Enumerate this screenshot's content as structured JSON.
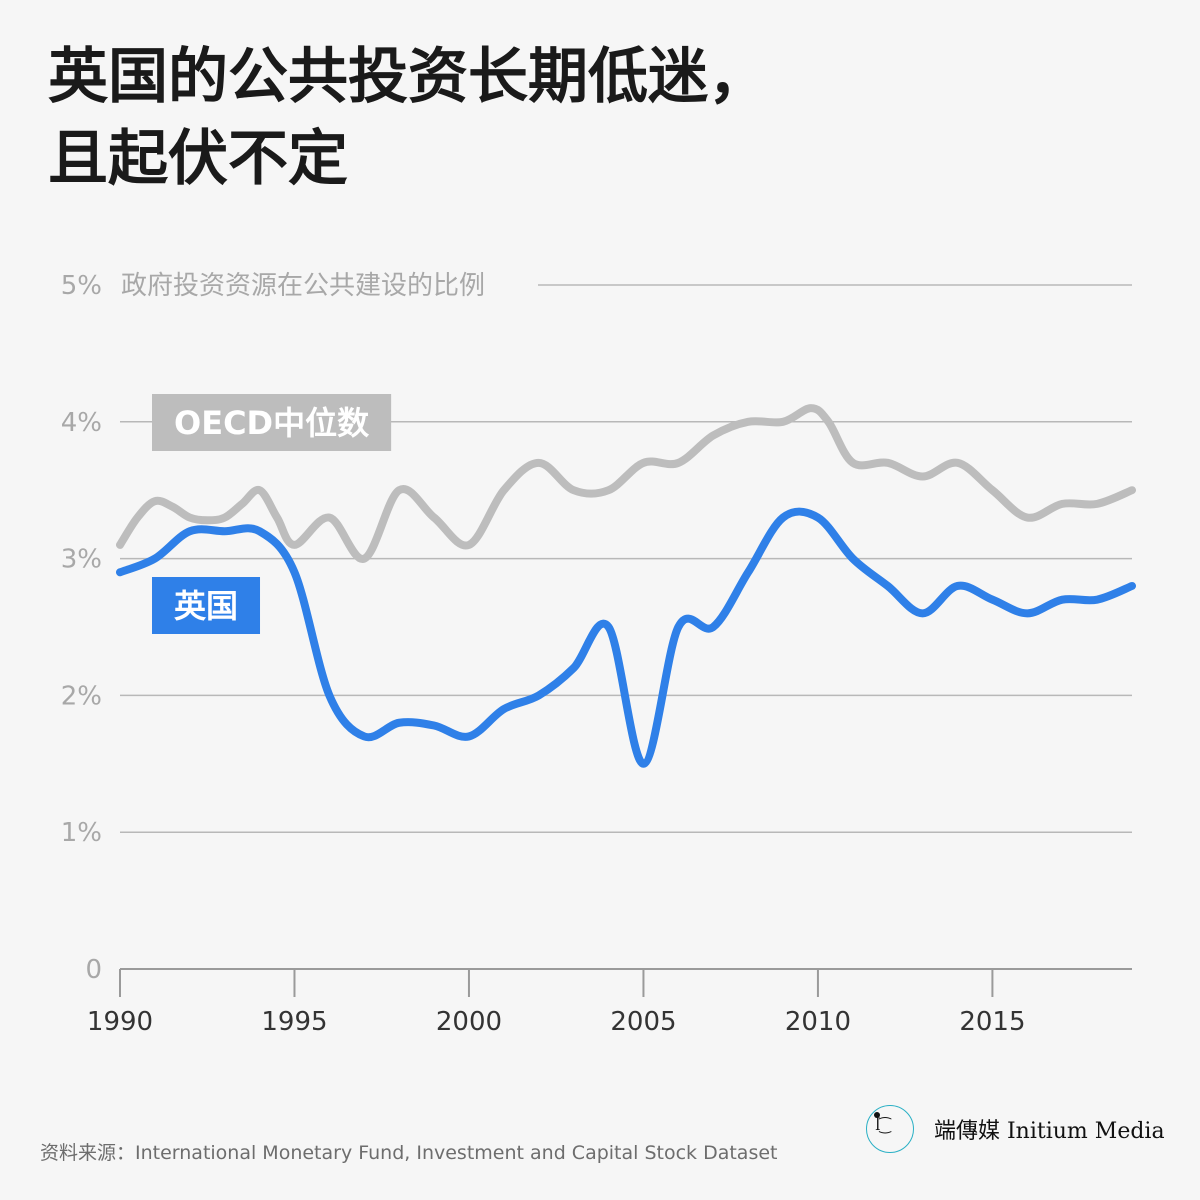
{
  "title_lines": [
    "英国的公共投资长期低迷，",
    "且起伏不定"
  ],
  "source": "资料来源：International Monetary Fund, Investment and Capital Stock Dataset",
  "brand": {
    "name": "端傳媒 Initium Media"
  },
  "colors": {
    "uk": "#2f80e8",
    "oecd": "#bdbdbd",
    "grid": "#b8b8b8",
    "axis": "#9a9a9a"
  },
  "chart_data": {
    "type": "line",
    "title": "英国的公共投资长期低迷，且起伏不定",
    "ylabel": "政府投资资源在公共建设的比例",
    "ylim": [
      0,
      5
    ],
    "xlim": [
      1990,
      2019
    ],
    "yticks": [
      0,
      1,
      2,
      3,
      4,
      5
    ],
    "ytick_labels": [
      "0",
      "1%",
      "2%",
      "3%",
      "4%",
      "5%"
    ],
    "xticks": [
      1990,
      1995,
      2000,
      2005,
      2010,
      2015
    ],
    "xtick_labels": [
      "1990",
      "1995",
      "2000",
      "2005",
      "2010",
      "2015"
    ],
    "grid": true,
    "series": [
      {
        "name": "OECD中位数",
        "color": "#bdbdbd",
        "x": [
          1990,
          1990.5,
          1991,
          1991.5,
          1992,
          1992.5,
          1993,
          1993.5,
          1994,
          1994.5,
          1995,
          1996,
          1997,
          1998,
          1999,
          2000,
          2001,
          2002,
          2003,
          2004,
          2005,
          2006,
          2007,
          2008,
          2009,
          2009.8,
          2010.3,
          2011,
          2012,
          2013,
          2014,
          2015,
          2016,
          2017,
          2018,
          2019
        ],
        "values": [
          3.1,
          3.3,
          3.42,
          3.38,
          3.3,
          3.28,
          3.3,
          3.4,
          3.5,
          3.3,
          3.1,
          3.3,
          3.0,
          3.5,
          3.3,
          3.1,
          3.5,
          3.7,
          3.5,
          3.5,
          3.7,
          3.7,
          3.9,
          4.0,
          4.0,
          4.1,
          4.0,
          3.7,
          3.7,
          3.6,
          3.7,
          3.5,
          3.3,
          3.4,
          3.4,
          3.5
        ]
      },
      {
        "name": "英国",
        "color": "#2f80e8",
        "x": [
          1990,
          1991,
          1992,
          1993,
          1994,
          1995,
          1996,
          1997,
          1998,
          1999,
          2000,
          2001,
          2002,
          2003,
          2004,
          2005,
          2006,
          2007,
          2008,
          2009,
          2010,
          2011,
          2012,
          2013,
          2014,
          2015,
          2016,
          2017,
          2018,
          2019
        ],
        "values": [
          2.9,
          3.0,
          3.2,
          3.2,
          3.2,
          2.9,
          2.0,
          1.7,
          1.8,
          1.78,
          1.7,
          1.9,
          2.0,
          2.2,
          2.5,
          1.5,
          2.5,
          2.5,
          2.9,
          3.3,
          3.3,
          3.0,
          2.8,
          2.6,
          2.8,
          2.7,
          2.6,
          2.7,
          2.7,
          2.8
        ]
      }
    ]
  }
}
